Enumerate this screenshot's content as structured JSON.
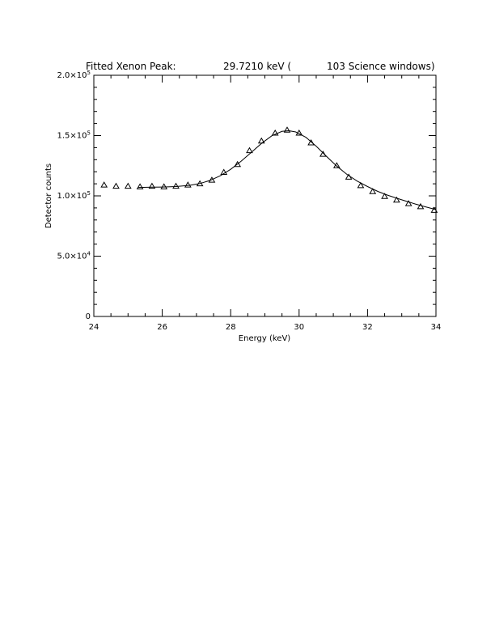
{
  "chart_data": {
    "type": "scatter",
    "title_parts": [
      "Fitted Xenon Peak:",
      "29.7210 keV (",
      "103 Science windows)"
    ],
    "xlabel": "Energy (keV)",
    "ylabel": "Detector counts",
    "xlim": [
      24,
      34
    ],
    "ylim": [
      0,
      200000
    ],
    "x_ticks": [
      24,
      26,
      28,
      30,
      32,
      34
    ],
    "x_tick_labels": [
      "24",
      "26",
      "28",
      "30",
      "32",
      "34"
    ],
    "y_ticks": [
      0,
      50000,
      100000,
      150000,
      200000
    ],
    "y_tick_labels": [
      {
        "mant": "0",
        "exp": ""
      },
      {
        "mant": "5.0×10",
        "exp": "4"
      },
      {
        "mant": "1.0×10",
        "exp": "5"
      },
      {
        "mant": "1.5×10",
        "exp": "5"
      },
      {
        "mant": "2.0×10",
        "exp": "5"
      }
    ],
    "grid": false,
    "series": [
      {
        "marker": "triangle",
        "x": [
          24.3,
          24.65,
          25.0,
          25.35,
          25.7,
          26.05,
          26.4,
          26.75,
          27.1,
          27.45,
          27.8,
          28.2,
          28.55,
          28.9,
          29.3,
          29.65,
          30.0,
          30.35,
          30.7,
          31.1,
          31.45,
          31.8,
          32.15,
          32.5,
          32.85,
          33.2,
          33.55,
          33.95
        ],
        "y": [
          109000,
          108000,
          108000,
          107500,
          108000,
          107500,
          108000,
          109000,
          110000,
          113000,
          119500,
          126000,
          137500,
          145500,
          152000,
          154500,
          152000,
          144000,
          134500,
          125000,
          115500,
          108500,
          103500,
          99500,
          96500,
          93500,
          91000,
          88000
        ]
      },
      {
        "style": "line",
        "x": [
          25.3,
          25.7,
          26.0,
          26.4,
          26.8,
          27.1,
          27.4,
          27.7,
          28.0,
          28.3,
          28.6,
          28.9,
          29.2,
          29.5,
          29.7,
          29.9,
          30.2,
          30.5,
          30.8,
          31.1,
          31.4,
          31.7,
          32.0,
          32.3,
          32.6,
          33.0,
          33.4,
          33.7,
          34.0
        ],
        "y": [
          107000,
          107200,
          107300,
          107700,
          108700,
          110200,
          112800,
          116700,
          122000,
          128600,
          136000,
          143500,
          149800,
          153500,
          154000,
          153000,
          148500,
          141200,
          132800,
          124700,
          117800,
          112200,
          107700,
          103700,
          100400,
          96700,
          93200,
          90900,
          88600
        ]
      }
    ]
  }
}
